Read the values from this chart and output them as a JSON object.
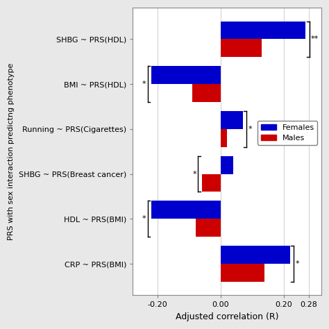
{
  "categories": [
    "SHBG ~ PRS(HDL)",
    "BMI ~ PRS(HDL)",
    "Running ~ PRS(Cigarettes)",
    "SHBG ~ PRS(Breast cancer)",
    "HDL ~ PRS(BMI)",
    "CRP ~ PRS(BMI)"
  ],
  "females": [
    0.27,
    -0.22,
    0.07,
    0.04,
    -0.22,
    0.22
  ],
  "males": [
    0.13,
    -0.09,
    0.02,
    -0.06,
    -0.08,
    0.14
  ],
  "female_color": "#0000CC",
  "male_color": "#CC0000",
  "xlabel": "Adjusted correlation (R)",
  "ylabel": "PRS with sex interaction predictng phenotype",
  "xlim": [
    -0.28,
    0.32
  ],
  "xticks": [
    -0.2,
    0.0,
    0.2,
    0.28
  ],
  "bar_height": 0.4,
  "plot_bg": "#ffffff",
  "fig_bg": "#e8e8e8",
  "annotations": {
    "SHBG ~ PRS(HDL)": {
      "symbol": "**",
      "side": "right"
    },
    "BMI ~ PRS(HDL)": {
      "symbol": "*",
      "side": "left"
    },
    "Running ~ PRS(Cigarettes)": {
      "symbol": "*",
      "side": "right"
    },
    "SHBG ~ PRS(Breast cancer)": {
      "symbol": "*",
      "side": "left"
    },
    "HDL ~ PRS(BMI)": {
      "symbol": "*",
      "side": "left"
    },
    "CRP ~ PRS(BMI)": {
      "symbol": "*",
      "side": "right"
    }
  }
}
